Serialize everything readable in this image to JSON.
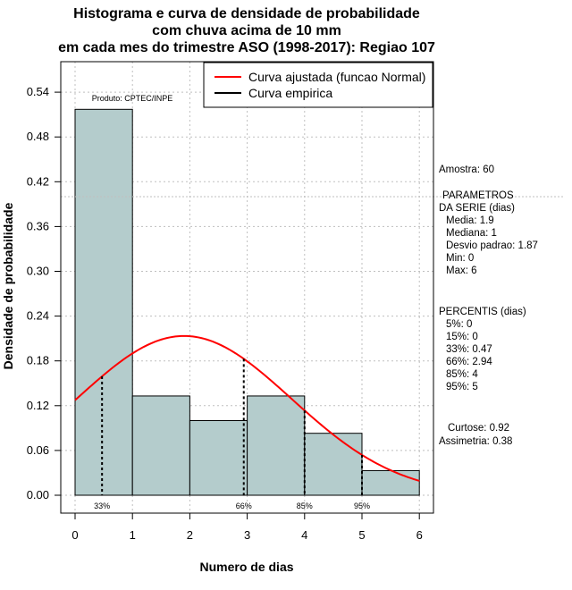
{
  "chart_data": {
    "type": "histogram",
    "title": [
      "Histograma e curva de densidade de probabilidade",
      "com chuva acima de 10 mm",
      "em cada mes do trimestre ASO (1998-2017): Regiao 107"
    ],
    "xlabel": "Numero de dias",
    "ylabel": "Densidade de probabilidade",
    "xlim": [
      -0.25,
      6.25
    ],
    "ylim": [
      -0.02,
      0.58
    ],
    "x_ticks": [
      0,
      1,
      2,
      3,
      4,
      5,
      6
    ],
    "y_ticks": [
      0.0,
      0.06,
      0.12,
      0.18,
      0.24,
      0.3,
      0.36,
      0.42,
      0.48,
      0.54
    ],
    "y_tick_labels": [
      "0.00",
      "0.06",
      "0.12",
      "0.18",
      "0.24",
      "0.30",
      "0.36",
      "0.42",
      "0.48",
      "0.54"
    ],
    "bins": [
      {
        "start": 0,
        "end": 1,
        "density": 0.517
      },
      {
        "start": 1,
        "end": 2,
        "density": 0.133
      },
      {
        "start": 2,
        "end": 3,
        "density": 0.1
      },
      {
        "start": 3,
        "end": 4,
        "density": 0.133
      },
      {
        "start": 4,
        "end": 5,
        "density": 0.083
      },
      {
        "start": 5,
        "end": 6,
        "density": 0.033
      }
    ],
    "normal_fit": {
      "mean": 1.9,
      "sd": 1.87,
      "x_range": [
        0,
        6
      ]
    },
    "percentile_markers": [
      {
        "x": 0.47,
        "label": "33%"
      },
      {
        "x": 2.94,
        "label": "66%"
      },
      {
        "x": 4,
        "label": "85%"
      },
      {
        "x": 5,
        "label": "95%"
      }
    ],
    "reference_line_y": 0.4,
    "colors": {
      "bar_fill": "#b4cccc",
      "curve": "#ff0000",
      "grid": "#bfbfbf"
    },
    "legend": {
      "position": "top-right",
      "entries": [
        {
          "label": "Curva ajustada (funcao Normal)",
          "color": "#ff0000"
        },
        {
          "label": "Curva empirica",
          "color": "#000000"
        }
      ]
    },
    "annotation": "Produto: CPTEC/INPE"
  },
  "side_panel": {
    "amostra": "Amostra: 60",
    "params_header_1": "PARAMETROS",
    "params_header_2": "DA SERIE (dias)",
    "media": "Media: 1.9",
    "mediana": "Mediana: 1",
    "desvio": "Desvio padrao: 1.87",
    "min": "Min: 0",
    "max": "Max: 6",
    "perc_header": "PERCENTIS (dias)",
    "p5": "5%: 0",
    "p15": "15%: 0",
    "p33": "33%: 0.47",
    "p66": "66%: 2.94",
    "p85": "85%: 4",
    "p95": "95%: 5",
    "curtose": "Curtose: 0.92",
    "assimetria": "Assimetria: 0.38"
  }
}
